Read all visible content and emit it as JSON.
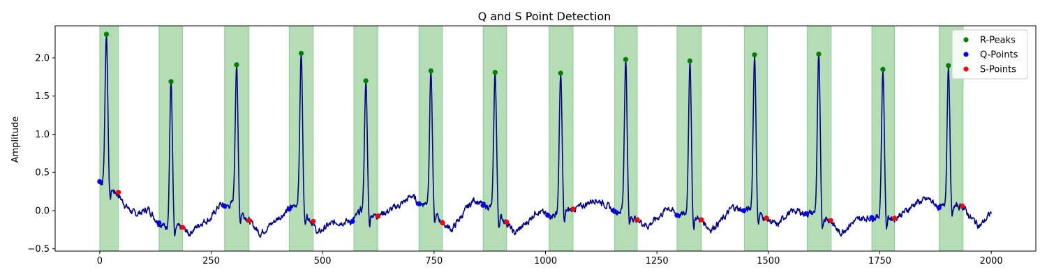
{
  "chart_data": {
    "type": "line",
    "title": "Q and S Point Detection",
    "xlabel": "",
    "ylabel": "Amplitude",
    "xlim": [
      -100,
      2100
    ],
    "ylim": [
      -0.53,
      2.42
    ],
    "xticks": [
      0,
      250,
      500,
      750,
      1000,
      1250,
      1500,
      1750,
      2000
    ],
    "yticks": [
      -0.5,
      0.0,
      0.5,
      1.0,
      1.5,
      2.0
    ],
    "xtick_labels": [
      "0",
      "250",
      "500",
      "750",
      "1000",
      "1250",
      "1500",
      "1750",
      "2000"
    ],
    "ytick_labels": [
      "−0.5",
      "0.0",
      "0.5",
      "1.0",
      "1.5",
      "2.0"
    ],
    "grid": false,
    "legend_position": "top-right",
    "colors": {
      "signal": "#00008b",
      "r_peaks": "#008000",
      "q_points": "#0000ff",
      "s_points": "#ff0000",
      "qrs_region": "#4caf50"
    },
    "legend": [
      {
        "label": "R-Peaks",
        "color": "#008000"
      },
      {
        "label": "Q-Points",
        "color": "#0000ff"
      },
      {
        "label": "S-Points",
        "color": "#ff0000"
      }
    ],
    "signal": {
      "x_start": 0,
      "x_end": 2000,
      "baseline_knots": [
        [
          0,
          0.38
        ],
        [
          20,
          0.3
        ],
        [
          40,
          0.22
        ],
        [
          60,
          0.05
        ],
        [
          80,
          -0.05
        ],
        [
          110,
          0.02
        ],
        [
          130,
          -0.15
        ],
        [
          150,
          -0.22
        ],
        [
          185,
          -0.22
        ],
        [
          200,
          -0.3
        ],
        [
          230,
          -0.15
        ],
        [
          250,
          -0.1
        ],
        [
          260,
          0.0
        ],
        [
          270,
          0.08
        ],
        [
          285,
          0.05
        ],
        [
          300,
          0.1
        ],
        [
          335,
          -0.13
        ],
        [
          360,
          -0.3
        ],
        [
          380,
          -0.2
        ],
        [
          400,
          -0.1
        ],
        [
          425,
          0.02
        ],
        [
          445,
          0.1
        ],
        [
          475,
          -0.14
        ],
        [
          490,
          -0.3
        ],
        [
          510,
          -0.2
        ],
        [
          530,
          -0.15
        ],
        [
          567,
          -0.14
        ],
        [
          585,
          0.0
        ],
        [
          620,
          -0.07
        ],
        [
          650,
          0.0
        ],
        [
          680,
          0.1
        ],
        [
          700,
          0.2
        ],
        [
          716,
          0.09
        ],
        [
          735,
          0.1
        ],
        [
          768,
          -0.16
        ],
        [
          790,
          -0.25
        ],
        [
          820,
          0.0
        ],
        [
          840,
          0.15
        ],
        [
          860,
          0.07
        ],
        [
          875,
          0.05
        ],
        [
          912,
          -0.15
        ],
        [
          930,
          -0.3
        ],
        [
          960,
          -0.15
        ],
        [
          980,
          0.0
        ],
        [
          1005,
          -0.06
        ],
        [
          1025,
          -0.05
        ],
        [
          1062,
          0.02
        ],
        [
          1080,
          0.05
        ],
        [
          1110,
          0.15
        ],
        [
          1130,
          0.1
        ],
        [
          1155,
          -0.01
        ],
        [
          1172,
          0.0
        ],
        [
          1205,
          -0.12
        ],
        [
          1230,
          -0.2
        ],
        [
          1260,
          -0.05
        ],
        [
          1275,
          0.05
        ],
        [
          1295,
          -0.06
        ],
        [
          1315,
          -0.05
        ],
        [
          1350,
          -0.12
        ],
        [
          1370,
          -0.25
        ],
        [
          1400,
          -0.1
        ],
        [
          1420,
          0.05
        ],
        [
          1445,
          0.0
        ],
        [
          1460,
          0.02
        ],
        [
          1495,
          -0.1
        ],
        [
          1520,
          -0.2
        ],
        [
          1540,
          -0.05
        ],
        [
          1560,
          0.0
        ],
        [
          1585,
          -0.04
        ],
        [
          1605,
          -0.03
        ],
        [
          1640,
          -0.13
        ],
        [
          1660,
          -0.3
        ],
        [
          1690,
          -0.15
        ],
        [
          1710,
          -0.1
        ],
        [
          1732,
          -0.09
        ],
        [
          1750,
          -0.08
        ],
        [
          1783,
          -0.1
        ],
        [
          1810,
          0.0
        ],
        [
          1830,
          0.1
        ],
        [
          1860,
          0.15
        ],
        [
          1883,
          0.04
        ],
        [
          1898,
          0.05
        ],
        [
          1935,
          0.06
        ],
        [
          1955,
          -0.1
        ],
        [
          1975,
          -0.2
        ],
        [
          1990,
          -0.1
        ],
        [
          2000,
          -0.02
        ]
      ],
      "noise_amplitude": 0.035
    },
    "qrs_regions": [
      [
        0,
        42
      ],
      [
        133,
        186
      ],
      [
        280,
        335
      ],
      [
        425,
        479
      ],
      [
        570,
        624
      ],
      [
        716,
        769
      ],
      [
        860,
        913
      ],
      [
        1008,
        1062
      ],
      [
        1155,
        1206
      ],
      [
        1295,
        1350
      ],
      [
        1446,
        1498
      ],
      [
        1587,
        1641
      ],
      [
        1732,
        1783
      ],
      [
        1883,
        1937
      ]
    ],
    "r_peaks": [
      [
        15,
        2.31
      ],
      [
        160,
        1.69
      ],
      [
        307,
        1.91
      ],
      [
        452,
        2.06
      ],
      [
        597,
        1.7
      ],
      [
        743,
        1.83
      ],
      [
        887,
        1.81
      ],
      [
        1034,
        1.8
      ],
      [
        1180,
        1.98
      ],
      [
        1324,
        1.96
      ],
      [
        1469,
        2.04
      ],
      [
        1613,
        2.05
      ],
      [
        1757,
        1.85
      ],
      [
        1904,
        1.9
      ]
    ],
    "q_points": [
      [
        0,
        0.38
      ],
      [
        133,
        -0.16
      ],
      [
        280,
        0.06
      ],
      [
        425,
        0.02
      ],
      [
        567,
        -0.14
      ],
      [
        716,
        0.09
      ],
      [
        860,
        0.07
      ],
      [
        1005,
        -0.06
      ],
      [
        1155,
        -0.01
      ],
      [
        1295,
        -0.06
      ],
      [
        1445,
        0.0
      ],
      [
        1585,
        -0.04
      ],
      [
        1732,
        -0.09
      ],
      [
        1883,
        0.04
      ]
    ],
    "s_points": [
      [
        42,
        0.24
      ],
      [
        186,
        -0.22
      ],
      [
        335,
        -0.13
      ],
      [
        479,
        -0.14
      ],
      [
        624,
        -0.07
      ],
      [
        769,
        -0.16
      ],
      [
        913,
        -0.15
      ],
      [
        1062,
        0.02
      ],
      [
        1206,
        -0.12
      ],
      [
        1350,
        -0.12
      ],
      [
        1496,
        -0.1
      ],
      [
        1640,
        -0.13
      ],
      [
        1783,
        -0.1
      ],
      [
        1935,
        0.06
      ]
    ]
  }
}
